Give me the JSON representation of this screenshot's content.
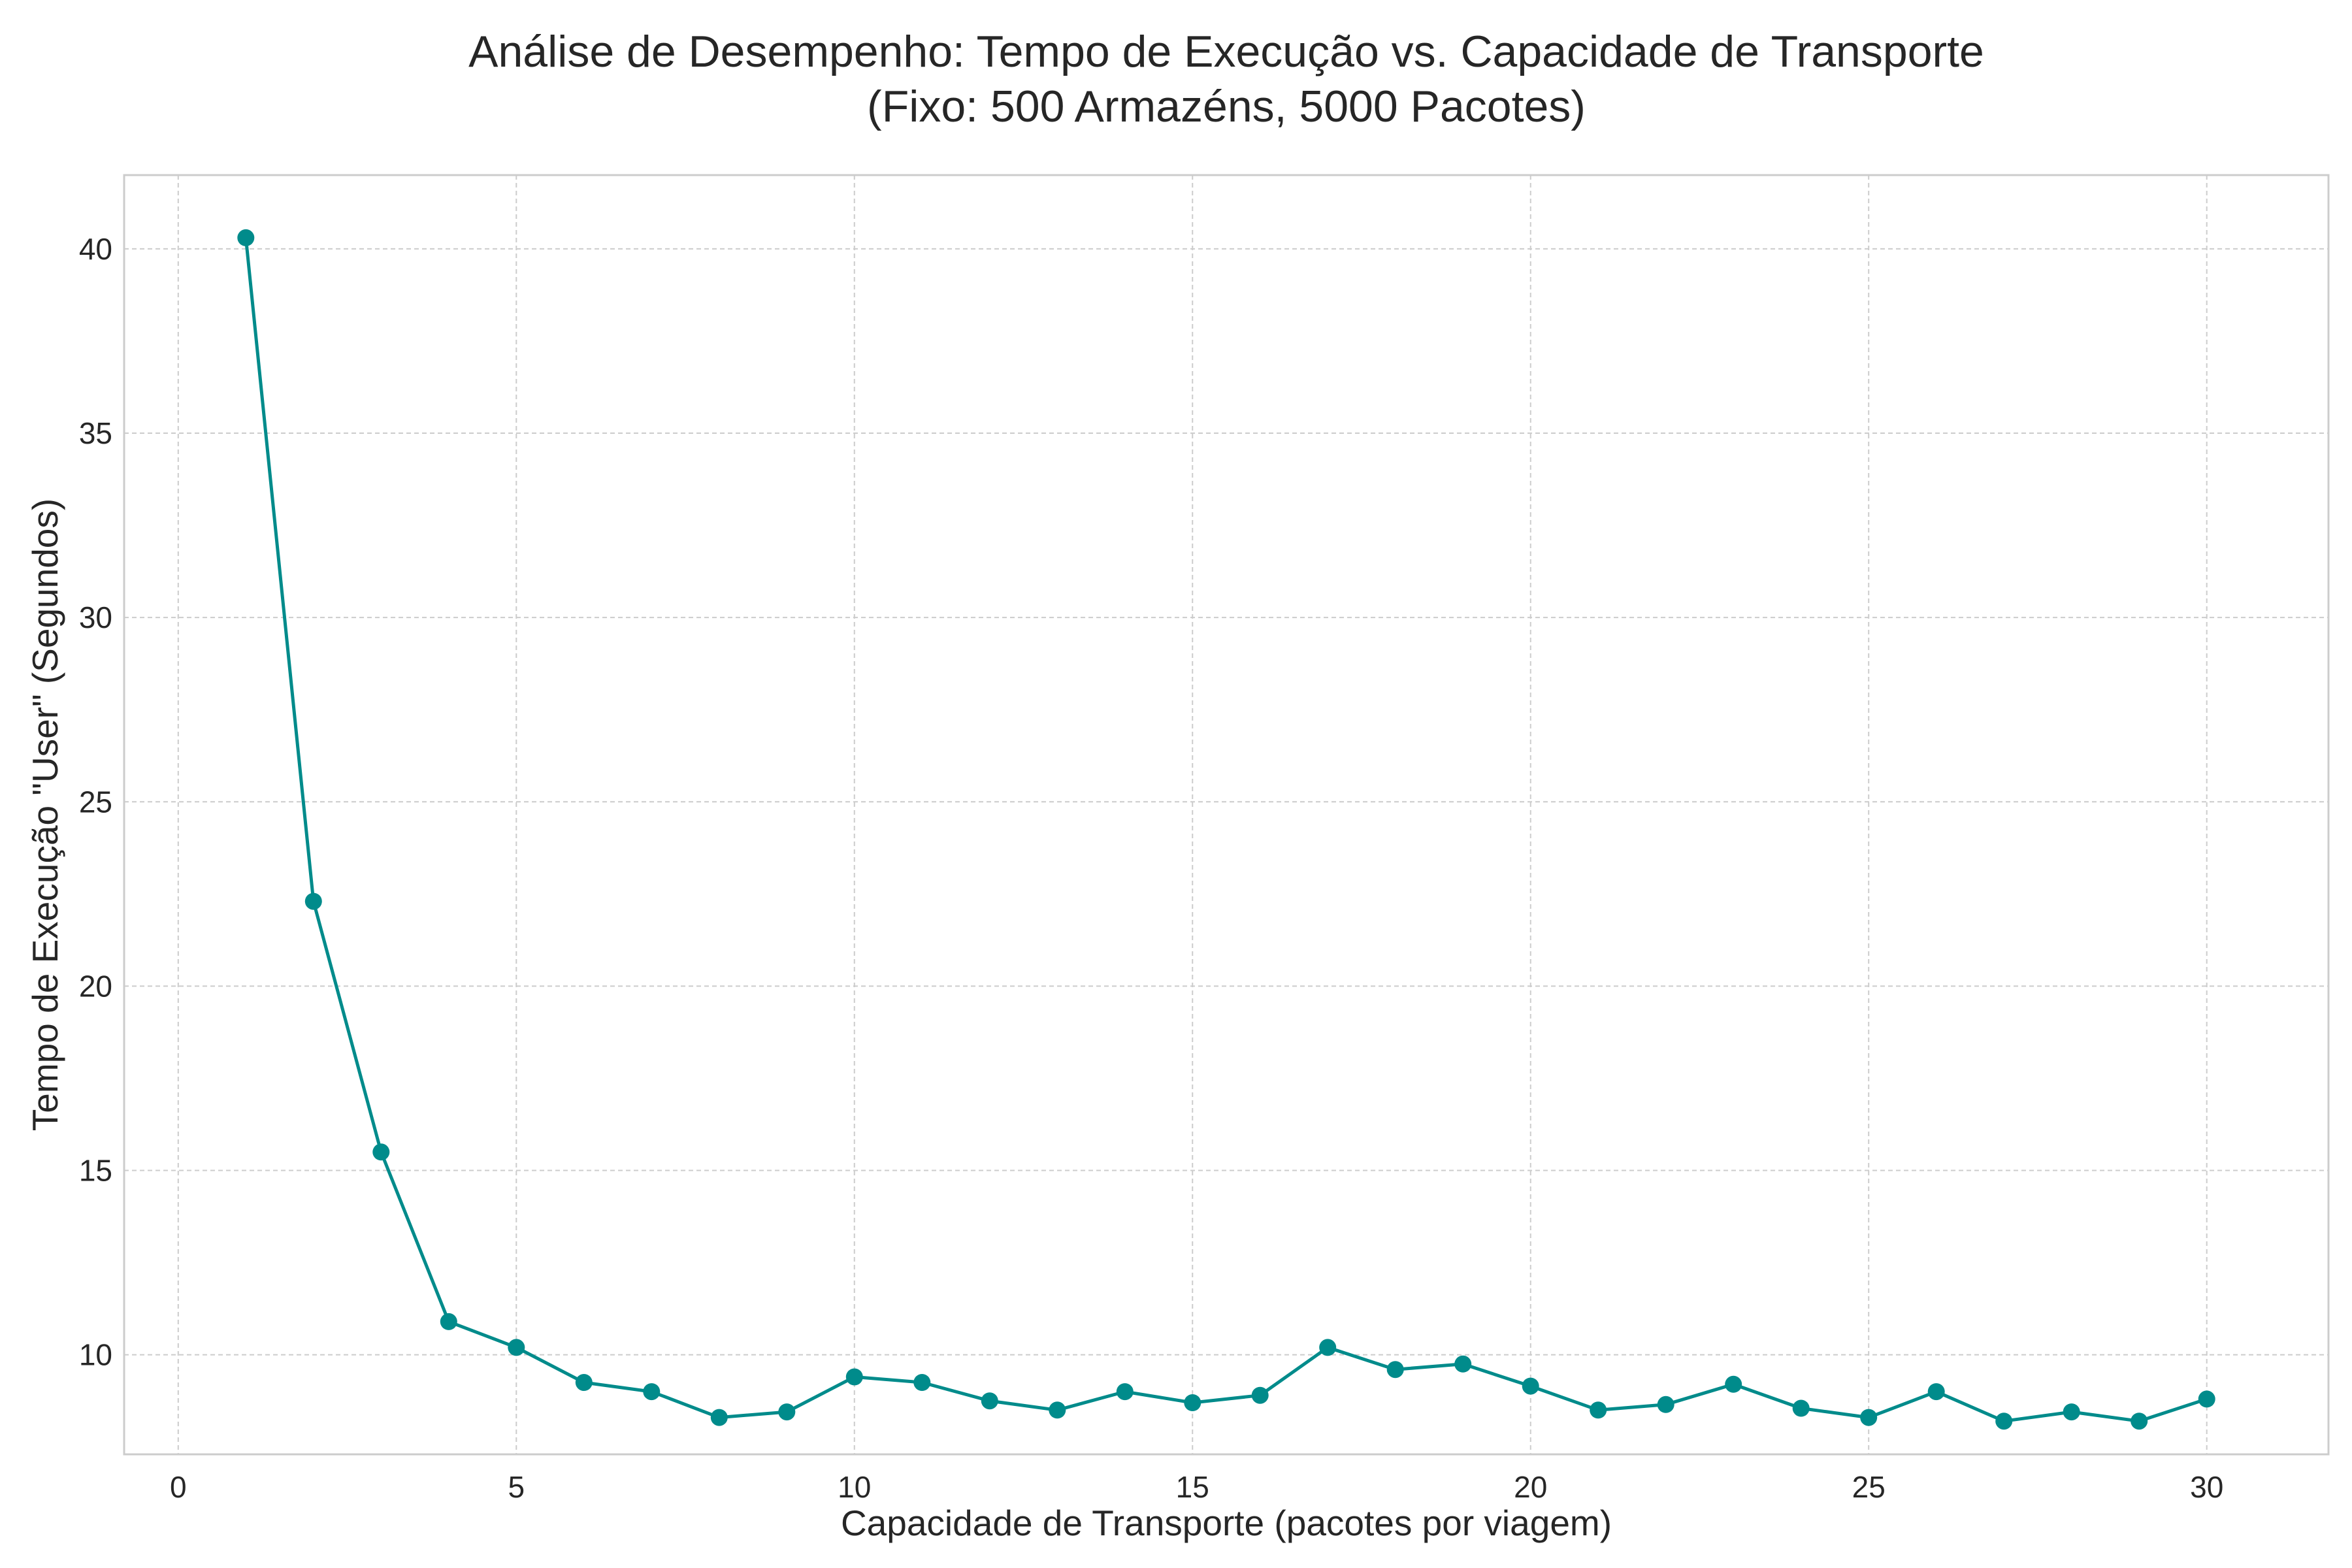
{
  "chart_data": {
    "type": "line",
    "title": "Análise de Desempenho: Tempo de Execução vs. Capacidade de Transporte",
    "subtitle": "(Fixo: 500 Armazéns, 5000 Pacotes)",
    "xlabel": "Capacidade de Transporte (pacotes por viagem)",
    "ylabel": "Tempo de Execução \"User\" (Segundos)",
    "xlim": [
      -0.8,
      31.8
    ],
    "ylim": [
      7.3,
      42.0
    ],
    "xticks": [
      0,
      5,
      10,
      15,
      20,
      25,
      30
    ],
    "yticks": [
      10,
      15,
      20,
      25,
      30,
      35,
      40
    ],
    "grid": true,
    "legend": "none",
    "colors": {
      "series": "#008b8b"
    },
    "series": [
      {
        "x": [
          1,
          2,
          3,
          4,
          5,
          6,
          7,
          8,
          9,
          10,
          11,
          12,
          13,
          14,
          15,
          16,
          17,
          18,
          19,
          20,
          21,
          22,
          23,
          24,
          25,
          26,
          27,
          28,
          29,
          30
        ],
        "values": [
          40.3,
          22.3,
          15.5,
          10.9,
          10.2,
          9.25,
          9.0,
          8.3,
          8.45,
          9.4,
          9.25,
          8.75,
          8.5,
          9.0,
          8.7,
          8.9,
          10.2,
          9.6,
          9.75,
          9.15,
          8.5,
          8.65,
          9.2,
          8.55,
          8.3,
          9.0,
          8.2,
          8.45,
          8.2,
          8.8
        ]
      }
    ]
  }
}
